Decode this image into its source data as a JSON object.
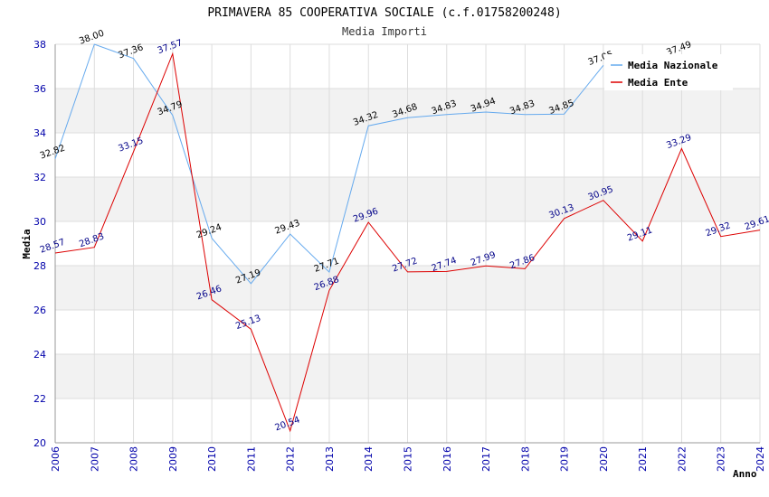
{
  "chart_data": {
    "type": "line",
    "title": "PRIMAVERA 85 COOPERATIVA SOCIALE (c.f.01758200248)",
    "subtitle": "Media Importi",
    "xlabel": "Anno",
    "ylabel": "Media",
    "ylim": [
      20,
      38
    ],
    "yticks": [
      "20",
      "22",
      "24",
      "26",
      "28",
      "30",
      "32",
      "34",
      "36",
      "38"
    ],
    "categories": [
      "2006",
      "2007",
      "2008",
      "2009",
      "2010",
      "2011",
      "2012",
      "2013",
      "2014",
      "2015",
      "2016",
      "2017",
      "2018",
      "2019",
      "2020",
      "2021",
      "2022",
      "2023",
      "2024"
    ],
    "legend_position": "top-right",
    "series": [
      {
        "name": "Media Nazionale",
        "color": "#66aaee",
        "label_color": "#000000",
        "values": [
          32.82,
          38.0,
          37.36,
          34.79,
          29.24,
          27.19,
          29.43,
          27.71,
          34.32,
          34.68,
          34.83,
          34.94,
          34.83,
          34.85,
          37.05,
          null,
          null,
          null,
          null
        ],
        "labels": [
          "32.82",
          "38.00",
          "37.36",
          "34.79",
          "29.24",
          "27.19",
          "29.43",
          "27.71",
          "34.32",
          "34.68",
          "34.83",
          "34.94",
          "34.83",
          "34.85",
          "37.05",
          null,
          null,
          null,
          null
        ]
      },
      {
        "name": "Media Ente",
        "color": "#dd0000",
        "label_color": "#000088",
        "values": [
          28.57,
          28.83,
          33.15,
          37.57,
          26.46,
          25.13,
          20.54,
          26.88,
          29.96,
          27.72,
          27.74,
          27.99,
          27.86,
          30.13,
          30.95,
          29.11,
          33.29,
          29.32,
          29.61
        ],
        "labels": [
          "28.57",
          "28.83",
          "33.15",
          "37.57",
          "26.46",
          "25.13",
          "20.54",
          "26.88",
          "29.96",
          "27.72",
          "27.74",
          "27.99",
          "27.86",
          "30.13",
          "30.95",
          "29.11",
          "33.29",
          "29.32",
          "29.61"
        ]
      }
    ],
    "extra_labels": [
      {
        "text": "37.49",
        "category": "2022",
        "value": 37.49,
        "color": "#000000"
      }
    ]
  }
}
